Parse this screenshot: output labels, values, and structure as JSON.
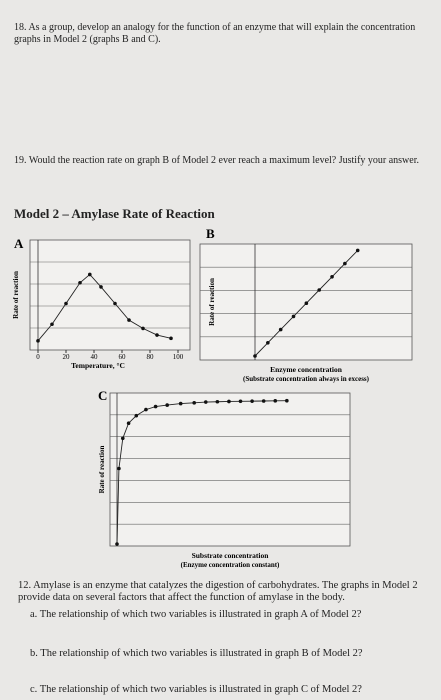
{
  "questions": {
    "q18": "18. As a group, develop an analogy for the function of an enzyme that will explain the concentration graphs in Model 2 (graphs B and C).",
    "q19": "19. Would the reaction rate on graph B of Model 2 ever reach a maximum level? Justify your answer."
  },
  "model": {
    "title": "Model 2 – Amylase Rate of Reaction",
    "graphs": [
      {
        "label": "A",
        "y_label": "Rate of reaction",
        "x_label": "Temperature, °C",
        "xlim": [
          0,
          100
        ],
        "ylim": [
          0,
          100
        ],
        "xticks": [
          0,
          20,
          40,
          60,
          80,
          100
        ],
        "x": [
          0,
          10,
          20,
          30,
          37,
          45,
          55,
          65,
          75,
          85,
          95
        ],
        "y": [
          5,
          25,
          50,
          75,
          85,
          70,
          50,
          30,
          20,
          12,
          8
        ]
      },
      {
        "label": "B",
        "y_label": "Rate of reaction",
        "x_label": "Enzyme concentration",
        "x_sublabel": "(Substrate concentration always in excess)",
        "xlim": [
          0,
          10
        ],
        "ylim": [
          0,
          10
        ],
        "x": [
          0,
          1.2,
          2.4,
          3.6,
          4.8,
          6,
          7.2,
          8.4,
          9.6
        ],
        "y": [
          0,
          1.2,
          2.4,
          3.6,
          4.8,
          6,
          7.2,
          8.4,
          9.6
        ]
      },
      {
        "label": "C",
        "y_label": "Rate of reaction",
        "x_label": "Substrate concentration",
        "x_sublabel": "(Enzyme concentration constant)",
        "xlim": [
          0,
          10
        ],
        "ylim": [
          0,
          10
        ],
        "x": [
          0,
          0.1,
          0.3,
          0.6,
          1,
          1.5,
          2,
          2.6,
          3.3,
          4,
          4.6,
          5.2,
          5.8,
          6.4,
          7,
          7.6,
          8.2,
          8.8
        ],
        "y": [
          0,
          5,
          7,
          8,
          8.5,
          8.9,
          9.1,
          9.2,
          9.3,
          9.35,
          9.4,
          9.42,
          9.44,
          9.45,
          9.46,
          9.47,
          9.48,
          9.49
        ]
      }
    ]
  },
  "q12": {
    "intro": "12. Amylase is an enzyme that catalyzes the digestion of carbohydrates. The graphs in Model 2 provide data on several factors that affect the function of amylase in the body.",
    "a": "a. The relationship of which two variables is illustrated in graph A of Model 2?",
    "b": "b. The relationship of which two variables is illustrated in graph B of Model 2?",
    "c": "c. The relationship of which two variables is illustrated in graph C of Model 2?"
  }
}
